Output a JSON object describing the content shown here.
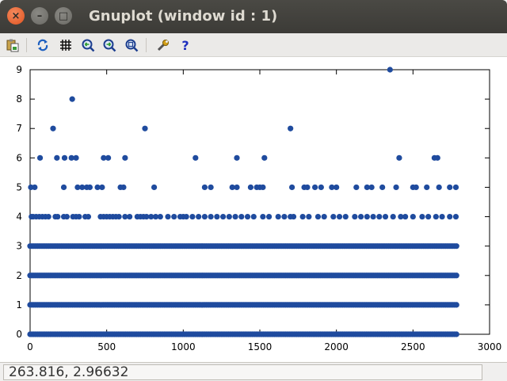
{
  "window": {
    "title": "Gnuplot (window id : 1)",
    "buttons": {
      "close": "×",
      "minimize": "–",
      "maximize": "□"
    }
  },
  "toolbar": {
    "items": [
      {
        "name": "copy-to-clipboard",
        "icon": "clipboard-icon"
      },
      {
        "name": "replot",
        "icon": "refresh-icon"
      },
      {
        "name": "toggle-grid",
        "icon": "grid-icon"
      },
      {
        "name": "previous-zoom",
        "icon": "zoom-back-icon"
      },
      {
        "name": "next-zoom",
        "icon": "zoom-forward-icon"
      },
      {
        "name": "autoscale",
        "icon": "zoom-fit-icon"
      },
      {
        "name": "preferences",
        "icon": "wrench-icon"
      },
      {
        "name": "help",
        "icon": "help-icon"
      }
    ]
  },
  "status": {
    "coordinates": "263.816,  2.96632"
  },
  "colors": {
    "points": "#1f4b9e",
    "axis": "#000000",
    "background": "#ffffff"
  },
  "chart_data": {
    "type": "scatter",
    "title": "",
    "xlabel": "",
    "ylabel": "",
    "xlim": [
      0,
      3000
    ],
    "ylim": [
      0,
      9
    ],
    "xticks": [
      "0",
      "500",
      "1000",
      "1500",
      "2000",
      "2500",
      "3000"
    ],
    "yticks": [
      "0",
      "1",
      "2",
      "3",
      "4",
      "5",
      "6",
      "7",
      "8",
      "9"
    ],
    "grid": false,
    "legend": "none",
    "x_extent": [
      0,
      2790
    ],
    "series": [
      {
        "marker": "circle",
        "dense_levels": [
          0,
          1,
          2,
          3
        ],
        "sparse_points": [
          [
            9,
            4
          ],
          [
            20,
            4
          ],
          [
            40,
            4
          ],
          [
            60,
            4
          ],
          [
            80,
            4
          ],
          [
            100,
            4
          ],
          [
            120,
            4
          ],
          [
            165,
            4
          ],
          [
            180,
            4
          ],
          [
            220,
            4
          ],
          [
            240,
            4
          ],
          [
            280,
            4
          ],
          [
            300,
            4
          ],
          [
            320,
            4
          ],
          [
            360,
            4
          ],
          [
            380,
            4
          ],
          [
            460,
            4
          ],
          [
            480,
            4
          ],
          [
            500,
            4
          ],
          [
            520,
            4
          ],
          [
            540,
            4
          ],
          [
            560,
            4
          ],
          [
            580,
            4
          ],
          [
            620,
            4
          ],
          [
            650,
            4
          ],
          [
            700,
            4
          ],
          [
            720,
            4
          ],
          [
            740,
            4
          ],
          [
            760,
            4
          ],
          [
            790,
            4
          ],
          [
            820,
            4
          ],
          [
            850,
            4
          ],
          [
            900,
            4
          ],
          [
            940,
            4
          ],
          [
            980,
            4
          ],
          [
            1000,
            4
          ],
          [
            1020,
            4
          ],
          [
            1060,
            4
          ],
          [
            1100,
            4
          ],
          [
            1140,
            4
          ],
          [
            1180,
            4
          ],
          [
            1220,
            4
          ],
          [
            1260,
            4
          ],
          [
            1300,
            4
          ],
          [
            1340,
            4
          ],
          [
            1380,
            4
          ],
          [
            1420,
            4
          ],
          [
            1460,
            4
          ],
          [
            1520,
            4
          ],
          [
            1560,
            4
          ],
          [
            1620,
            4
          ],
          [
            1660,
            4
          ],
          [
            1700,
            4
          ],
          [
            1720,
            4
          ],
          [
            1780,
            4
          ],
          [
            1820,
            4
          ],
          [
            1880,
            4
          ],
          [
            1920,
            4
          ],
          [
            1980,
            4
          ],
          [
            2020,
            4
          ],
          [
            2060,
            4
          ],
          [
            2120,
            4
          ],
          [
            2160,
            4
          ],
          [
            2200,
            4
          ],
          [
            2240,
            4
          ],
          [
            2280,
            4
          ],
          [
            2320,
            4
          ],
          [
            2370,
            4
          ],
          [
            2420,
            4
          ],
          [
            2450,
            4
          ],
          [
            2500,
            4
          ],
          [
            2560,
            4
          ],
          [
            2600,
            4
          ],
          [
            2650,
            4
          ],
          [
            2690,
            4
          ],
          [
            2740,
            4
          ],
          [
            2780,
            4
          ],
          [
            5,
            5
          ],
          [
            30,
            5
          ],
          [
            220,
            5
          ],
          [
            310,
            5
          ],
          [
            340,
            5
          ],
          [
            370,
            5
          ],
          [
            390,
            5
          ],
          [
            440,
            5
          ],
          [
            470,
            5
          ],
          [
            590,
            5
          ],
          [
            610,
            5
          ],
          [
            810,
            5
          ],
          [
            1140,
            5
          ],
          [
            1180,
            5
          ],
          [
            1320,
            5
          ],
          [
            1350,
            5
          ],
          [
            1440,
            5
          ],
          [
            1480,
            5
          ],
          [
            1500,
            5
          ],
          [
            1520,
            5
          ],
          [
            1710,
            5
          ],
          [
            1790,
            5
          ],
          [
            1810,
            5
          ],
          [
            1860,
            5
          ],
          [
            1900,
            5
          ],
          [
            1970,
            5
          ],
          [
            2000,
            5
          ],
          [
            2130,
            5
          ],
          [
            2200,
            5
          ],
          [
            2230,
            5
          ],
          [
            2300,
            5
          ],
          [
            2390,
            5
          ],
          [
            2500,
            5
          ],
          [
            2520,
            5
          ],
          [
            2590,
            5
          ],
          [
            2670,
            5
          ],
          [
            2740,
            5
          ],
          [
            2780,
            5
          ],
          [
            65,
            6
          ],
          [
            175,
            6
          ],
          [
            225,
            6
          ],
          [
            270,
            6
          ],
          [
            300,
            6
          ],
          [
            480,
            6
          ],
          [
            510,
            6
          ],
          [
            620,
            6
          ],
          [
            1080,
            6
          ],
          [
            1350,
            6
          ],
          [
            1530,
            6
          ],
          [
            2410,
            6
          ],
          [
            2640,
            6
          ],
          [
            2660,
            6
          ],
          [
            150,
            7
          ],
          [
            750,
            7
          ],
          [
            1700,
            7
          ],
          [
            275,
            8
          ],
          [
            2350,
            9
          ]
        ]
      }
    ]
  }
}
